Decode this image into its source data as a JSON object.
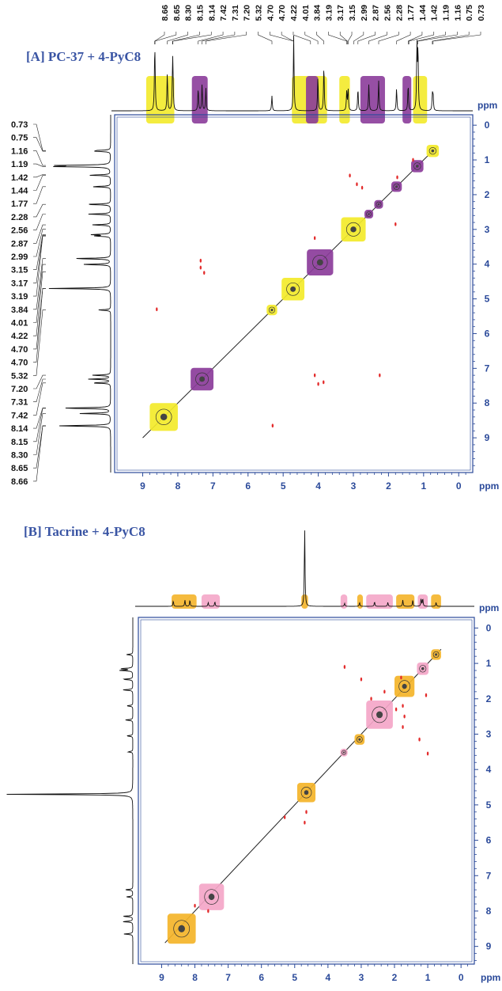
{
  "chart_data": [
    {
      "type": "heatmap",
      "panel_label": "[A] PC-37 + 4-PyC8",
      "unit": "ppm",
      "x_ticks": [
        9,
        8,
        7,
        6,
        5,
        4,
        3,
        2,
        1,
        0
      ],
      "y_ticks": [
        0,
        1,
        2,
        3,
        4,
        5,
        6,
        7,
        8,
        9
      ],
      "xlim": [
        9.8,
        -0.4
      ],
      "ylim": [
        -0.3,
        10.0
      ],
      "peak_labels_top": [
        "8.66",
        "8.65",
        "8.30",
        "8.15",
        "8.14",
        "7.42",
        "7.31",
        "7.20",
        "5.32",
        "4.70",
        "4.70",
        "4.22",
        "4.01",
        "3.84",
        "3.19",
        "3.17",
        "3.15",
        "2.99",
        "2.87",
        "2.56",
        "2.28",
        "1.77",
        "1.44",
        "1.42",
        "1.19",
        "1.16",
        "0.75",
        "0.73"
      ],
      "peak_labels_left": [
        "0.73",
        "0.75",
        "1.16",
        "1.19",
        "1.42",
        "1.44",
        "1.77",
        "2.28",
        "2.56",
        "2.87",
        "2.99",
        "3.15",
        "3.17",
        "3.19",
        "3.84",
        "4.01",
        "4.22",
        "4.70",
        "4.70",
        "5.32",
        "7.20",
        "7.31",
        "7.42",
        "8.14",
        "8.15",
        "8.30",
        "8.65",
        "8.66"
      ],
      "spectrum_peaks": [
        {
          "ppm": 8.66,
          "h": 0.5
        },
        {
          "ppm": 8.65,
          "h": 0.45
        },
        {
          "ppm": 8.3,
          "h": 0.5
        },
        {
          "ppm": 8.15,
          "h": 0.45
        },
        {
          "ppm": 8.14,
          "h": 0.4
        },
        {
          "ppm": 7.42,
          "h": 0.3
        },
        {
          "ppm": 7.31,
          "h": 0.35
        },
        {
          "ppm": 7.2,
          "h": 0.3
        },
        {
          "ppm": 5.32,
          "h": 0.2
        },
        {
          "ppm": 4.7,
          "h": 1.0
        },
        {
          "ppm": 4.01,
          "h": 0.45
        },
        {
          "ppm": 3.84,
          "h": 0.6
        },
        {
          "ppm": 3.19,
          "h": 0.25
        },
        {
          "ppm": 3.15,
          "h": 0.3
        },
        {
          "ppm": 2.87,
          "h": 0.3
        },
        {
          "ppm": 2.56,
          "h": 0.35
        },
        {
          "ppm": 2.28,
          "h": 0.4
        },
        {
          "ppm": 1.77,
          "h": 0.3
        },
        {
          "ppm": 1.44,
          "h": 0.35
        },
        {
          "ppm": 1.19,
          "h": 0.85
        },
        {
          "ppm": 1.16,
          "h": 0.8
        },
        {
          "ppm": 0.75,
          "h": 0.2
        },
        {
          "ppm": 0.73,
          "h": 0.2
        }
      ],
      "highlight_boxes": [
        {
          "x": [
            8.1,
            8.9
          ],
          "color": "#f3ea2a",
          "shape": "top"
        },
        {
          "x": [
            7.15,
            7.6
          ],
          "color": "#8b3c9a",
          "shape": "top"
        },
        {
          "x": [
            3.75,
            4.75
          ],
          "color": "#f3ea2a",
          "shape": "top"
        },
        {
          "x": [
            3.1,
            3.4
          ],
          "color": "#f3ea2a",
          "shape": "top"
        },
        {
          "x": [
            2.1,
            2.8
          ],
          "color": "#8b3c9a",
          "shape": "top"
        },
        {
          "x": [
            1.35,
            1.6
          ],
          "color": "#8b3c9a",
          "shape": "top"
        },
        {
          "x": [
            0.9,
            1.3
          ],
          "color": "#f3ea2a",
          "shape": "top"
        },
        {
          "x": [
            4.0,
            4.35
          ],
          "color": "#8b3c9a",
          "shape": "top"
        }
      ],
      "cross_peaks": [
        {
          "x": 0.74,
          "y": 0.74,
          "w": 0.35,
          "color": "#f3ea2a"
        },
        {
          "x": 1.18,
          "y": 1.18,
          "w": 0.35,
          "color": "#8b3c9a"
        },
        {
          "x": 1.77,
          "y": 1.77,
          "w": 0.3,
          "color": "#8b3c9a"
        },
        {
          "x": 2.28,
          "y": 2.28,
          "w": 0.25,
          "color": "#8b3c9a"
        },
        {
          "x": 2.56,
          "y": 2.56,
          "w": 0.25,
          "color": "#8b3c9a"
        },
        {
          "x": 3.0,
          "y": 3.0,
          "w": 0.7,
          "color": "#f3ea2a"
        },
        {
          "x": 3.95,
          "y": 3.95,
          "w": 0.75,
          "color": "#8b3c9a"
        },
        {
          "x": 4.72,
          "y": 4.72,
          "w": 0.65,
          "color": "#f3ea2a"
        },
        {
          "x": 5.32,
          "y": 5.32,
          "w": 0.3,
          "color": "#f3ea2a"
        },
        {
          "x": 7.31,
          "y": 7.31,
          "w": 0.65,
          "color": "#8b3c9a"
        },
        {
          "x": 8.4,
          "y": 8.4,
          "w": 0.8,
          "color": "#f3ea2a"
        }
      ],
      "off_diagonal_spots": [
        {
          "x": 1.3,
          "y": 1.0
        },
        {
          "x": 1.75,
          "y": 1.5
        },
        {
          "x": 2.9,
          "y": 1.7
        },
        {
          "x": 2.75,
          "y": 1.8
        },
        {
          "x": 1.8,
          "y": 2.85
        },
        {
          "x": 4.1,
          "y": 3.25
        },
        {
          "x": 7.35,
          "y": 3.9
        },
        {
          "x": 7.35,
          "y": 4.1
        },
        {
          "x": 7.25,
          "y": 4.25
        },
        {
          "x": 8.6,
          "y": 5.3
        },
        {
          "x": 4.1,
          "y": 7.2
        },
        {
          "x": 4.0,
          "y": 7.45
        },
        {
          "x": 3.85,
          "y": 7.4
        },
        {
          "x": 2.25,
          "y": 7.2
        },
        {
          "x": 5.3,
          "y": 8.65
        },
        {
          "x": 3.1,
          "y": 1.45
        }
      ]
    },
    {
      "type": "heatmap",
      "panel_label": "[B] Tacrine + 4-PyC8",
      "unit": "ppm",
      "x_ticks": [
        9,
        8,
        7,
        6,
        5,
        4,
        3,
        2,
        1,
        0
      ],
      "y_ticks": [
        0,
        1,
        2,
        3,
        4,
        5,
        6,
        7,
        8,
        9
      ],
      "xlim": [
        9.7,
        -0.4
      ],
      "ylim": [
        -0.3,
        9.5
      ],
      "spectrum_peaks": [
        {
          "ppm": 8.65,
          "h": 0.07
        },
        {
          "ppm": 8.3,
          "h": 0.08
        },
        {
          "ppm": 8.15,
          "h": 0.08
        },
        {
          "ppm": 7.6,
          "h": 0.05
        },
        {
          "ppm": 7.4,
          "h": 0.06
        },
        {
          "ppm": 4.7,
          "h": 1.0
        },
        {
          "ppm": 3.5,
          "h": 0.04
        },
        {
          "ppm": 3.05,
          "h": 0.05
        },
        {
          "ppm": 2.6,
          "h": 0.06
        },
        {
          "ppm": 2.2,
          "h": 0.05
        },
        {
          "ppm": 1.75,
          "h": 0.08
        },
        {
          "ppm": 1.45,
          "h": 0.08
        },
        {
          "ppm": 1.2,
          "h": 0.1
        },
        {
          "ppm": 1.15,
          "h": 0.1
        },
        {
          "ppm": 0.75,
          "h": 0.05
        }
      ],
      "highlight_boxes": [
        {
          "x": [
            7.95,
            8.7
          ],
          "color": "#f4b429"
        },
        {
          "x": [
            7.25,
            7.8
          ],
          "color": "#f4a6c8"
        },
        {
          "x": [
            4.6,
            4.8
          ],
          "color": "#f4b429"
        },
        {
          "x": [
            3.42,
            3.62
          ],
          "color": "#f4a6c8"
        },
        {
          "x": [
            2.95,
            3.12
          ],
          "color": "#f4b429"
        },
        {
          "x": [
            2.05,
            2.85
          ],
          "color": "#f4a6c8"
        },
        {
          "x": [
            1.4,
            1.95
          ],
          "color": "#f4b429"
        },
        {
          "x": [
            1.0,
            1.3
          ],
          "color": "#f4a6c8"
        },
        {
          "x": [
            0.6,
            0.9
          ],
          "color": "#f4b429"
        }
      ],
      "cross_peaks": [
        {
          "x": 0.75,
          "y": 0.75,
          "w": 0.3,
          "color": "#f4b429"
        },
        {
          "x": 1.15,
          "y": 1.15,
          "w": 0.35,
          "color": "#f4a6c8"
        },
        {
          "x": 1.7,
          "y": 1.65,
          "w": 0.6,
          "color": "#f4b429"
        },
        {
          "x": 2.45,
          "y": 2.45,
          "w": 0.8,
          "color": "#f4a6c8"
        },
        {
          "x": 3.05,
          "y": 3.15,
          "w": 0.3,
          "color": "#f4b429"
        },
        {
          "x": 3.52,
          "y": 3.52,
          "w": 0.22,
          "color": "#f4a6c8"
        },
        {
          "x": 4.65,
          "y": 4.65,
          "w": 0.55,
          "color": "#f4b429"
        },
        {
          "x": 7.5,
          "y": 7.6,
          "w": 0.75,
          "color": "#f4a6c8"
        },
        {
          "x": 8.4,
          "y": 8.5,
          "w": 0.85,
          "color": "#f4b429"
        }
      ],
      "off_diagonal_spots": [
        {
          "x": 3.5,
          "y": 1.1
        },
        {
          "x": 3.0,
          "y": 1.45
        },
        {
          "x": 2.3,
          "y": 1.8
        },
        {
          "x": 2.7,
          "y": 2.0
        },
        {
          "x": 1.75,
          "y": 2.2
        },
        {
          "x": 1.7,
          "y": 2.5
        },
        {
          "x": 1.75,
          "y": 2.8
        },
        {
          "x": 1.95,
          "y": 2.3
        },
        {
          "x": 1.25,
          "y": 3.15
        },
        {
          "x": 1.0,
          "y": 3.55
        },
        {
          "x": 1.05,
          "y": 1.9
        },
        {
          "x": 4.65,
          "y": 5.2
        },
        {
          "x": 4.7,
          "y": 5.5
        },
        {
          "x": 5.3,
          "y": 5.35
        },
        {
          "x": 8.0,
          "y": 7.85
        },
        {
          "x": 7.6,
          "y": 8.0
        },
        {
          "x": 1.8,
          "y": 1.4
        }
      ]
    }
  ]
}
